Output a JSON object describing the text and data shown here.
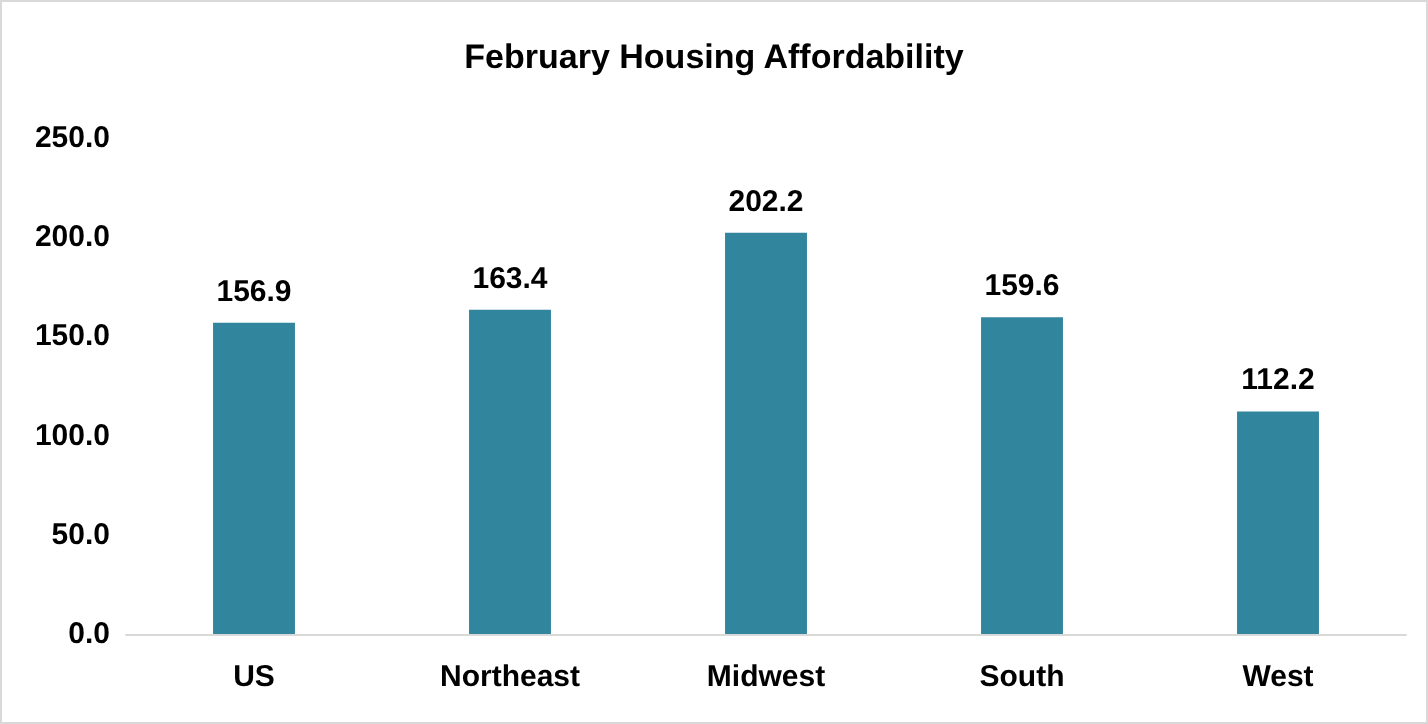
{
  "chart_data": {
    "type": "bar",
    "title": "February Housing Affordability",
    "categories": [
      "US",
      "Northeast",
      "Midwest",
      "South",
      "West"
    ],
    "values": [
      156.9,
      163.4,
      202.2,
      159.6,
      112.2
    ],
    "color": "#31859c",
    "ylim": [
      0,
      250
    ],
    "yticks": [
      {
        "value": 0,
        "label": "0.0"
      },
      {
        "value": 50,
        "label": "50.0"
      },
      {
        "value": 100,
        "label": "100.0"
      },
      {
        "value": 150,
        "label": "150.0"
      },
      {
        "value": 200,
        "label": "200.0"
      },
      {
        "value": 250,
        "label": "250.0"
      }
    ],
    "grid": false,
    "data_labels": true
  }
}
